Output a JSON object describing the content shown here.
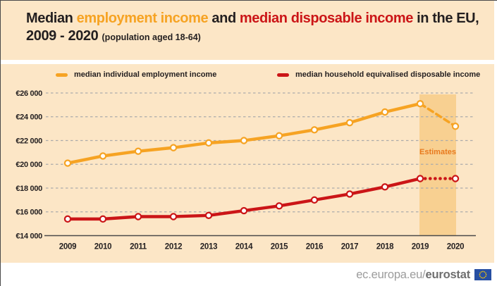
{
  "colors": {
    "background_panel": "#fce6c6",
    "accent_orange": "#f6a323",
    "accent_red": "#cb1517",
    "title_text": "#231f20",
    "estimates_band": "#f8d091",
    "estimates_label": "#e87a1e",
    "grid": "#ababab",
    "axis": "#4a4a4a",
    "footer_gray": "#9c9c9c",
    "footer_bold": "#6e6e6e",
    "eu_flag_blue": "#274fa2",
    "eu_flag_stars": "#ffcc00"
  },
  "header": {
    "title": {
      "s1": "Median ",
      "s2": "employment income",
      "s3": " and ",
      "s4": "median disposable income",
      "s5": " in the EU,",
      "line2": "2009 - 2020 ",
      "line2_note": "(population aged 18-64)"
    }
  },
  "legend": {
    "items": [
      {
        "label": "median individual employment income",
        "color": "#f6a323"
      },
      {
        "label": "median household equivalised disposable income",
        "color": "#cb1517"
      }
    ]
  },
  "chart_data": {
    "type": "line",
    "x": [
      2009,
      2010,
      2011,
      2012,
      2013,
      2014,
      2015,
      2016,
      2017,
      2018,
      2019,
      2020
    ],
    "series": [
      {
        "name": "median individual employment income",
        "color": "#f6a323",
        "values": [
          20100,
          20700,
          21100,
          21400,
          21800,
          22000,
          22400,
          22900,
          23500,
          24400,
          25100,
          23200
        ],
        "estimate_segment_style": "dashed"
      },
      {
        "name": "median household equivalised disposable income",
        "color": "#cb1517",
        "values": [
          15400,
          15400,
          15600,
          15600,
          15700,
          16100,
          16500,
          17000,
          17500,
          18100,
          18800,
          18800
        ],
        "estimate_segment_style": "dotted"
      }
    ],
    "ylim": [
      14000,
      26000
    ],
    "ytick_step": 2000,
    "yticklabels_top_to_bottom": [
      "€26 000",
      "€24 000",
      "€22 000",
      "€20 000",
      "€18 000",
      "€16 000",
      "€14 000"
    ],
    "grid": "horizontal-dashed",
    "legend_position": "top",
    "marker": "open-circle",
    "estimates": {
      "label": "Estimates",
      "start_year": 2019,
      "end_year": 2020
    }
  },
  "footer": {
    "url_prefix": "ec.europa.eu/",
    "url_bold": "eurostat"
  }
}
